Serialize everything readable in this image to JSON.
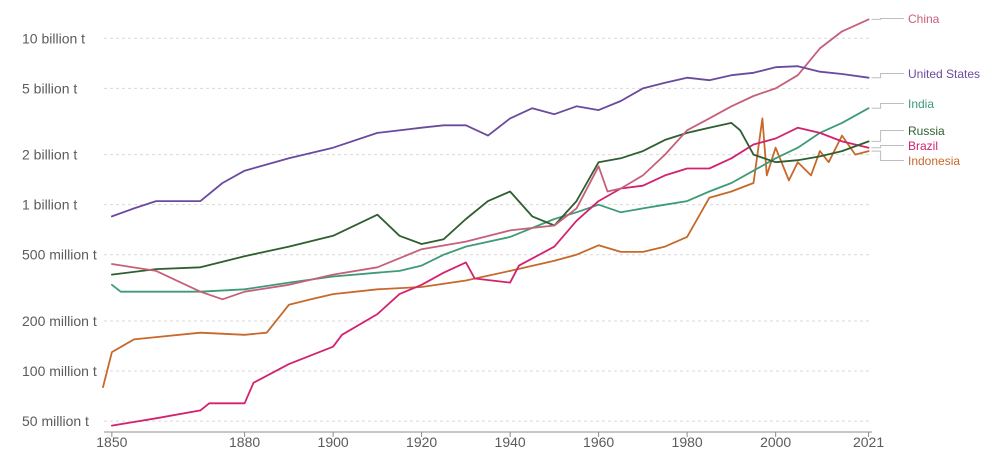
{
  "chart_data": {
    "type": "line",
    "title": "",
    "xlabel": "",
    "ylabel": "",
    "yscale": "log",
    "xlim": [
      1848,
      2022
    ],
    "ylim": [
      43000000,
      14000000000
    ],
    "colors": {
      "grid": "#d9d9d9",
      "axis": "#8c8c8c",
      "tick_text": "#5b5b5b",
      "connector": "#bdbdbd"
    },
    "x_ticks": [
      {
        "value": 1850,
        "label": "1850"
      },
      {
        "value": 1880,
        "label": "1880"
      },
      {
        "value": 1900,
        "label": "1900"
      },
      {
        "value": 1920,
        "label": "1920"
      },
      {
        "value": 1940,
        "label": "1940"
      },
      {
        "value": 1960,
        "label": "1960"
      },
      {
        "value": 1980,
        "label": "1980"
      },
      {
        "value": 2000,
        "label": "2000"
      },
      {
        "value": 2021,
        "label": "2021"
      }
    ],
    "y_ticks": [
      {
        "value": 10000000000,
        "label": "10 billion t"
      },
      {
        "value": 5000000000,
        "label": "5 billion t"
      },
      {
        "value": 2000000000,
        "label": "2 billion t"
      },
      {
        "value": 1000000000,
        "label": "1 billion t"
      },
      {
        "value": 500000000,
        "label": "500 million t"
      },
      {
        "value": 200000000,
        "label": "200 million t"
      },
      {
        "value": 100000000,
        "label": "100 million t"
      },
      {
        "value": 50000000,
        "label": "50 million t"
      }
    ],
    "series": [
      {
        "name": "China",
        "color": "#c5607a",
        "x": [
          1850,
          1860,
          1870,
          1875,
          1880,
          1890,
          1900,
          1910,
          1920,
          1930,
          1940,
          1950,
          1955,
          1960,
          1962,
          1965,
          1970,
          1975,
          1980,
          1985,
          1990,
          1995,
          2000,
          2005,
          2010,
          2015,
          2021
        ],
        "values": [
          440000000,
          400000000,
          300000000,
          270000000,
          300000000,
          330000000,
          380000000,
          420000000,
          540000000,
          600000000,
          700000000,
          750000000,
          950000000,
          1700000000,
          1200000000,
          1250000000,
          1500000000,
          2000000000,
          2800000000,
          3300000000,
          3900000000,
          4500000000,
          5000000000,
          6000000000,
          8700000000,
          11000000000,
          13000000000
        ]
      },
      {
        "name": "United States",
        "color": "#6b4a9e",
        "x": [
          1850,
          1855,
          1860,
          1870,
          1875,
          1880,
          1890,
          1900,
          1910,
          1920,
          1925,
          1930,
          1935,
          1940,
          1945,
          1950,
          1955,
          1960,
          1965,
          1970,
          1975,
          1980,
          1985,
          1990,
          1995,
          2000,
          2005,
          2010,
          2015,
          2021
        ],
        "values": [
          850000000,
          950000000,
          1050000000,
          1050000000,
          1350000000,
          1600000000,
          1900000000,
          2200000000,
          2700000000,
          2900000000,
          3000000000,
          3000000000,
          2600000000,
          3300000000,
          3800000000,
          3500000000,
          3900000000,
          3700000000,
          4200000000,
          5000000000,
          5400000000,
          5800000000,
          5600000000,
          6000000000,
          6200000000,
          6700000000,
          6800000000,
          6300000000,
          6100000000,
          5800000000
        ]
      },
      {
        "name": "India",
        "color": "#3e9a79",
        "x": [
          1850,
          1852,
          1860,
          1870,
          1880,
          1890,
          1900,
          1910,
          1915,
          1920,
          1925,
          1930,
          1940,
          1950,
          1955,
          1960,
          1965,
          1970,
          1975,
          1980,
          1985,
          1990,
          1995,
          2000,
          2005,
          2010,
          2015,
          2021
        ],
        "values": [
          330000000,
          300000000,
          300000000,
          300000000,
          310000000,
          340000000,
          370000000,
          390000000,
          400000000,
          430000000,
          500000000,
          560000000,
          640000000,
          820000000,
          900000000,
          1000000000,
          900000000,
          950000000,
          1000000000,
          1050000000,
          1200000000,
          1350000000,
          1600000000,
          1900000000,
          2200000000,
          2700000000,
          3100000000,
          3800000000
        ]
      },
      {
        "name": "Russia",
        "color": "#2f5e2f",
        "x": [
          1850,
          1860,
          1870,
          1880,
          1890,
          1900,
          1910,
          1915,
          1920,
          1925,
          1930,
          1935,
          1940,
          1945,
          1950,
          1955,
          1960,
          1965,
          1970,
          1975,
          1980,
          1985,
          1990,
          1992,
          1995,
          2000,
          2005,
          2010,
          2015,
          2021
        ],
        "values": [
          380000000,
          410000000,
          420000000,
          490000000,
          560000000,
          650000000,
          870000000,
          650000000,
          580000000,
          620000000,
          820000000,
          1050000000,
          1200000000,
          850000000,
          750000000,
          1050000000,
          1800000000,
          1900000000,
          2100000000,
          2450000000,
          2700000000,
          2900000000,
          3100000000,
          2800000000,
          2000000000,
          1800000000,
          1850000000,
          1950000000,
          2100000000,
          2400000000
        ]
      },
      {
        "name": "Brazil",
        "color": "#d2226f",
        "x": [
          1850,
          1860,
          1870,
          1872,
          1880,
          1882,
          1890,
          1900,
          1902,
          1910,
          1915,
          1920,
          1925,
          1930,
          1932,
          1940,
          1942,
          1950,
          1955,
          1960,
          1965,
          1970,
          1975,
          1980,
          1985,
          1990,
          1995,
          2000,
          2005,
          2010,
          2015,
          2021
        ],
        "values": [
          47000000,
          52000000,
          58000000,
          64000000,
          64000000,
          85000000,
          110000000,
          140000000,
          165000000,
          220000000,
          290000000,
          330000000,
          390000000,
          450000000,
          360000000,
          340000000,
          430000000,
          560000000,
          800000000,
          1050000000,
          1250000000,
          1300000000,
          1500000000,
          1650000000,
          1650000000,
          1900000000,
          2300000000,
          2500000000,
          2900000000,
          2700000000,
          2400000000,
          2200000000
        ]
      },
      {
        "name": "Indonesia",
        "color": "#c7692a",
        "x": [
          1848,
          1850,
          1855,
          1860,
          1870,
          1880,
          1885,
          1890,
          1895,
          1900,
          1910,
          1920,
          1930,
          1940,
          1950,
          1955,
          1960,
          1965,
          1970,
          1975,
          1980,
          1985,
          1990,
          1995,
          1997,
          1998,
          2000,
          2003,
          2005,
          2008,
          2010,
          2012,
          2015,
          2018,
          2021
        ],
        "values": [
          80000000,
          130000000,
          155000000,
          160000000,
          170000000,
          165000000,
          170000000,
          250000000,
          270000000,
          290000000,
          310000000,
          320000000,
          350000000,
          400000000,
          460000000,
          500000000,
          570000000,
          520000000,
          520000000,
          560000000,
          640000000,
          1100000000,
          1200000000,
          1350000000,
          3300000000,
          1500000000,
          2200000000,
          1400000000,
          1800000000,
          1500000000,
          2100000000,
          1800000000,
          2600000000,
          2000000000,
          2100000000
        ]
      }
    ],
    "legend": [
      {
        "name": "China",
        "color": "#c5607a",
        "series_index": 0
      },
      {
        "name": "United States",
        "color": "#6b4a9e",
        "series_index": 1
      },
      {
        "name": "India",
        "color": "#3e9a79",
        "series_index": 2
      },
      {
        "name": "Russia",
        "color": "#2f5e2f",
        "series_index": 3
      },
      {
        "name": "Brazil",
        "color": "#d2226f",
        "series_index": 4
      },
      {
        "name": "Indonesia",
        "color": "#c7692a",
        "series_index": 5
      }
    ]
  }
}
